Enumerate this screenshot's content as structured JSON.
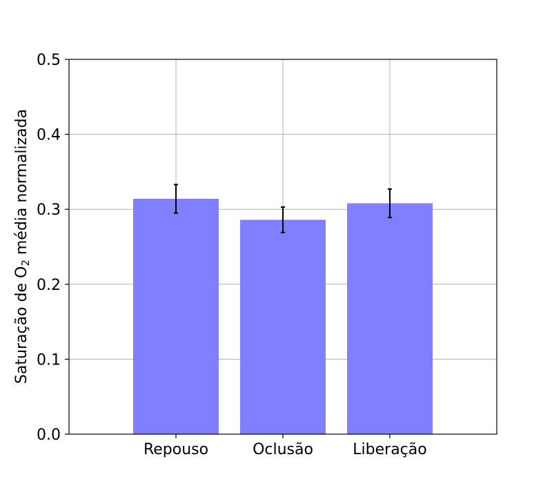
{
  "chart_data": {
    "type": "bar",
    "title": "",
    "xlabel": "",
    "ylabel_parts": [
      "Saturação de O",
      "2",
      " média normalizada"
    ],
    "categories": [
      "Repouso",
      "Oclusão",
      "Liberação"
    ],
    "values": [
      0.314,
      0.286,
      0.308
    ],
    "errors": [
      0.019,
      0.017,
      0.019
    ],
    "ylim": [
      0.0,
      0.5
    ],
    "yticks": [
      0.0,
      0.1,
      0.2,
      0.3,
      0.4,
      0.5
    ],
    "ytick_labels": [
      "0.0",
      "0.1",
      "0.2",
      "0.3",
      "0.4",
      "0.5"
    ],
    "xlim": [
      -1,
      3
    ],
    "grid": true,
    "bar_color": "#8080ff",
    "error_color": "#000000",
    "grid_color": "#b0b0b0"
  }
}
